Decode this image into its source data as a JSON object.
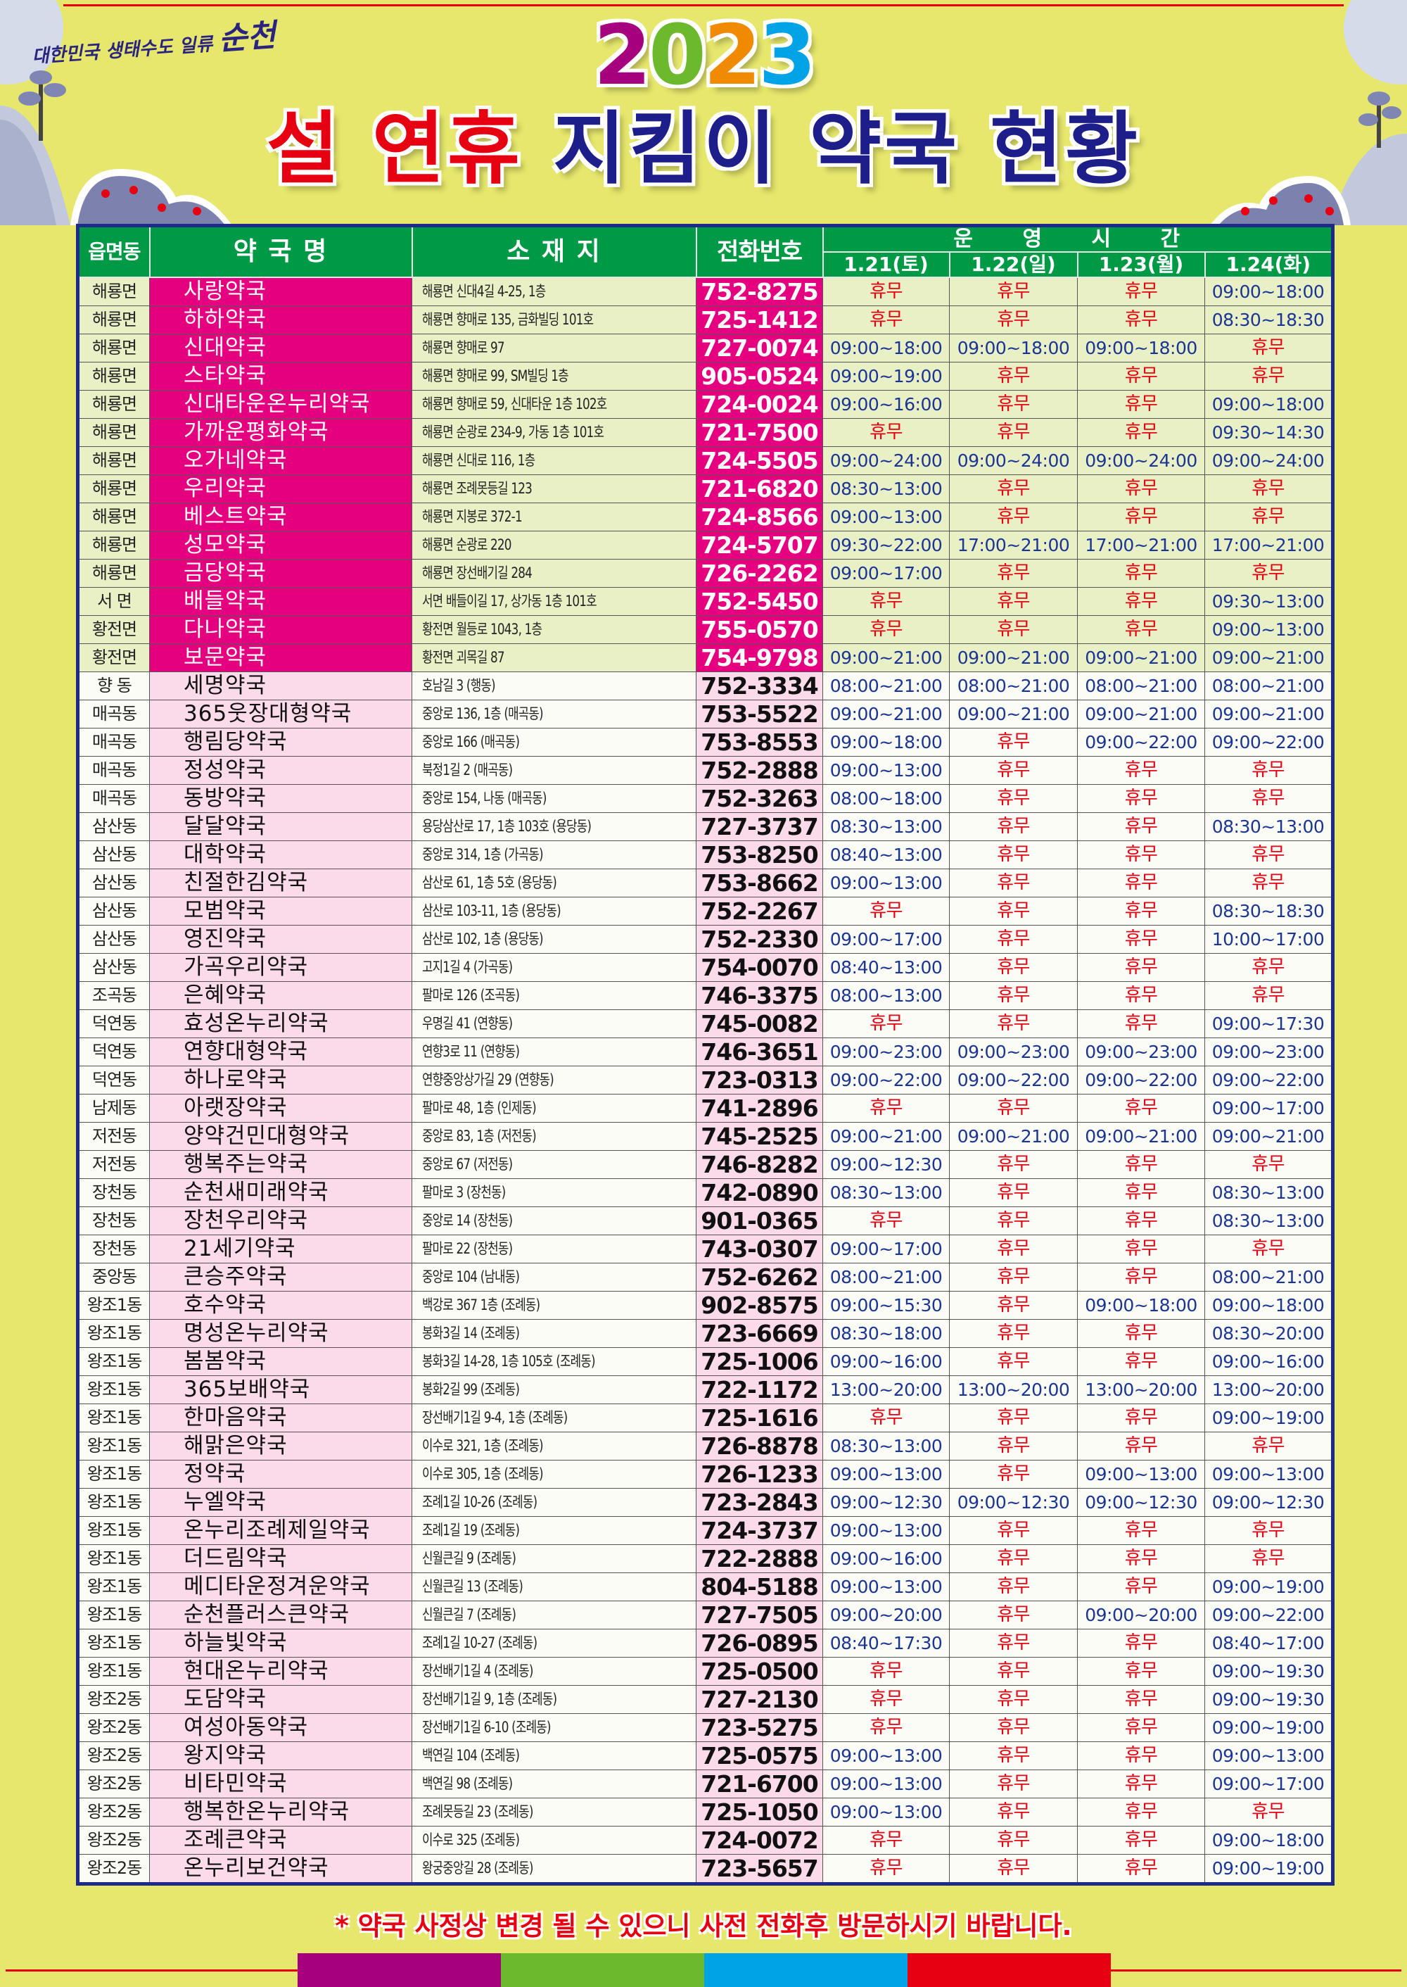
{
  "logo": {
    "text_small": "대한민국 생태수도 일류",
    "text_big": "순천"
  },
  "header": {
    "year_digits": [
      "2",
      "0",
      "2",
      "3"
    ],
    "year_colors": [
      "#a6007f",
      "#6db92d",
      "#f08a00",
      "#00a3e6"
    ],
    "title_red": "설 연휴",
    "title_navy": "지킴이 약국 현황"
  },
  "colors": {
    "accent_red": "#e60012",
    "navy": "#1e1e8a",
    "green": "#009a47",
    "magenta": "#e4007f",
    "hours_blue": "#1a3593"
  },
  "table": {
    "headers": {
      "district": "읍면동",
      "name": "약 국 명",
      "address": "소 재 지",
      "phone": "전화번호",
      "hours": "운 영 시 간"
    },
    "days": [
      "1.21(토)",
      "1.22(일)",
      "1.23(월)",
      "1.24(화)"
    ],
    "closed_label": "휴무",
    "featured_rows": [
      [
        "해룡면",
        "사랑약국",
        "해룡면 신대4길 4-25, 1층",
        "752-8275",
        "휴무",
        "휴무",
        "휴무",
        "09:00~18:00"
      ],
      [
        "해룡면",
        "하하약국",
        "해룡면 향매로 135, 금화빌딩 101호",
        "725-1412",
        "휴무",
        "휴무",
        "휴무",
        "08:30~18:30"
      ],
      [
        "해룡면",
        "신대약국",
        "해룡면 향매로 97",
        "727-0074",
        "09:00~18:00",
        "09:00~18:00",
        "09:00~18:00",
        "휴무"
      ],
      [
        "해룡면",
        "스타약국",
        "해룡면 향매로 99, SM빌딩 1층",
        "905-0524",
        "09:00~19:00",
        "휴무",
        "휴무",
        "휴무"
      ],
      [
        "해룡면",
        "신대타운온누리약국",
        "해룡면 향매로 59, 신대타운 1층 102호",
        "724-0024",
        "09:00~16:00",
        "휴무",
        "휴무",
        "09:00~18:00"
      ],
      [
        "해룡면",
        "가까운평화약국",
        "해룡면 순광로 234-9, 가동 1층 101호",
        "721-7500",
        "휴무",
        "휴무",
        "휴무",
        "09:30~14:30"
      ],
      [
        "해룡면",
        "오가네약국",
        "해룡면 신대로 116, 1층",
        "724-5505",
        "09:00~24:00",
        "09:00~24:00",
        "09:00~24:00",
        "09:00~24:00"
      ],
      [
        "해룡면",
        "우리약국",
        "해룡면 조례못등길 123",
        "721-6820",
        "08:30~13:00",
        "휴무",
        "휴무",
        "휴무"
      ],
      [
        "해룡면",
        "베스트약국",
        "해룡면 지봉로 372-1",
        "724-8566",
        "09:00~13:00",
        "휴무",
        "휴무",
        "휴무"
      ],
      [
        "해룡면",
        "성모약국",
        "해룡면 순광로 220",
        "724-5707",
        "09:30~22:00",
        "17:00~21:00",
        "17:00~21:00",
        "17:00~21:00"
      ],
      [
        "해룡면",
        "금당약국",
        "해룡면 장선배기길 284",
        "726-2262",
        "09:00~17:00",
        "휴무",
        "휴무",
        "휴무"
      ],
      [
        "서  면",
        "배들약국",
        "서면 배들이길 17, 상가동 1층 101호",
        "752-5450",
        "휴무",
        "휴무",
        "휴무",
        "09:30~13:00"
      ],
      [
        "황전면",
        "다나약국",
        "황전면 월등로 1043, 1층",
        "755-0570",
        "휴무",
        "휴무",
        "휴무",
        "09:00~13:00"
      ],
      [
        "황전면",
        "보문약국",
        "황전면 괴목길 87",
        "754-9798",
        "09:00~21:00",
        "09:00~21:00",
        "09:00~21:00",
        "09:00~21:00"
      ]
    ],
    "rows": [
      [
        "향  동",
        "세명약국",
        "호남길 3 (행동)",
        "752-3334",
        "08:00~21:00",
        "08:00~21:00",
        "08:00~21:00",
        "08:00~21:00"
      ],
      [
        "매곡동",
        "365웃장대형약국",
        "중앙로 136, 1층 (매곡동)",
        "753-5522",
        "09:00~21:00",
        "09:00~21:00",
        "09:00~21:00",
        "09:00~21:00"
      ],
      [
        "매곡동",
        "행림당약국",
        "중앙로 166 (매곡동)",
        "753-8553",
        "09:00~18:00",
        "휴무",
        "09:00~22:00",
        "09:00~22:00"
      ],
      [
        "매곡동",
        "정성약국",
        "북정1길 2 (매곡동)",
        "752-2888",
        "09:00~13:00",
        "휴무",
        "휴무",
        "휴무"
      ],
      [
        "매곡동",
        "동방약국",
        "중앙로 154, 나동 (매곡동)",
        "752-3263",
        "08:00~18:00",
        "휴무",
        "휴무",
        "휴무"
      ],
      [
        "삼산동",
        "달달약국",
        "용당삼산로 17, 1층 103호 (용당동)",
        "727-3737",
        "08:30~13:00",
        "휴무",
        "휴무",
        "08:30~13:00"
      ],
      [
        "삼산동",
        "대학약국",
        "중앙로 314, 1층 (가곡동)",
        "753-8250",
        "08:40~13:00",
        "휴무",
        "휴무",
        "휴무"
      ],
      [
        "삼산동",
        "친절한김약국",
        "삼산로 61, 1층 5호 (용당동)",
        "753-8662",
        "09:00~13:00",
        "휴무",
        "휴무",
        "휴무"
      ],
      [
        "삼산동",
        "모범약국",
        "삼산로 103-11, 1층 (용당동)",
        "752-2267",
        "휴무",
        "휴무",
        "휴무",
        "08:30~18:30"
      ],
      [
        "삼산동",
        "영진약국",
        "삼산로 102, 1층 (용당동)",
        "752-2330",
        "09:00~17:00",
        "휴무",
        "휴무",
        "10:00~17:00"
      ],
      [
        "삼산동",
        "가곡우리약국",
        "고지1길 4 (가곡동)",
        "754-0070",
        "08:40~13:00",
        "휴무",
        "휴무",
        "휴무"
      ],
      [
        "조곡동",
        "은혜약국",
        "팔마로 126 (조곡동)",
        "746-3375",
        "08:00~13:00",
        "휴무",
        "휴무",
        "휴무"
      ],
      [
        "덕연동",
        "효성온누리약국",
        "우명길 41 (연향동)",
        "745-0082",
        "휴무",
        "휴무",
        "휴무",
        "09:00~17:30"
      ],
      [
        "덕연동",
        "연향대형약국",
        "연향3로 11 (연향동)",
        "746-3651",
        "09:00~23:00",
        "09:00~23:00",
        "09:00~23:00",
        "09:00~23:00"
      ],
      [
        "덕연동",
        "하나로약국",
        "연향중앙상가길 29 (연향동)",
        "723-0313",
        "09:00~22:00",
        "09:00~22:00",
        "09:00~22:00",
        "09:00~22:00"
      ],
      [
        "남제동",
        "아랫장약국",
        "팔마로 48, 1층 (인제동)",
        "741-2896",
        "휴무",
        "휴무",
        "휴무",
        "09:00~17:00"
      ],
      [
        "저전동",
        "양약건민대형약국",
        "중앙로 83, 1층 (저전동)",
        "745-2525",
        "09:00~21:00",
        "09:00~21:00",
        "09:00~21:00",
        "09:00~21:00"
      ],
      [
        "저전동",
        "행복주는약국",
        "중앙로 67 (저전동)",
        "746-8282",
        "09:00~12:30",
        "휴무",
        "휴무",
        "휴무"
      ],
      [
        "장천동",
        "순천새미래약국",
        "팔마로 3 (장천동)",
        "742-0890",
        "08:30~13:00",
        "휴무",
        "휴무",
        "08:30~13:00"
      ],
      [
        "장천동",
        "장천우리약국",
        "중앙로 14 (장천동)",
        "901-0365",
        "휴무",
        "휴무",
        "휴무",
        "08:30~13:00"
      ],
      [
        "장천동",
        "21세기약국",
        "팔마로 22 (장천동)",
        "743-0307",
        "09:00~17:00",
        "휴무",
        "휴무",
        "휴무"
      ],
      [
        "중앙동",
        "큰승주약국",
        "중앙로 104 (남내동)",
        "752-6262",
        "08:00~21:00",
        "휴무",
        "휴무",
        "08:00~21:00"
      ],
      [
        "왕조1동",
        "호수약국",
        "백강로 367 1층 (조례동)",
        "902-8575",
        "09:00~15:30",
        "휴무",
        "09:00~18:00",
        "09:00~18:00"
      ],
      [
        "왕조1동",
        "명성온누리약국",
        "봉화3길 14 (조례동)",
        "723-6669",
        "08:30~18:00",
        "휴무",
        "휴무",
        "08:30~20:00"
      ],
      [
        "왕조1동",
        "봄봄약국",
        "봉화3길 14-28, 1층 105호 (조례동)",
        "725-1006",
        "09:00~16:00",
        "휴무",
        "휴무",
        "09:00~16:00"
      ],
      [
        "왕조1동",
        "365보배약국",
        "봉화2길 99 (조례동)",
        "722-1172",
        "13:00~20:00",
        "13:00~20:00",
        "13:00~20:00",
        "13:00~20:00"
      ],
      [
        "왕조1동",
        "한마음약국",
        "장선배기1길 9-4, 1층 (조례동)",
        "725-1616",
        "휴무",
        "휴무",
        "휴무",
        "09:00~19:00"
      ],
      [
        "왕조1동",
        "해맑은약국",
        "이수로 321, 1층 (조례동)",
        "726-8878",
        "08:30~13:00",
        "휴무",
        "휴무",
        "휴무"
      ],
      [
        "왕조1동",
        "정약국",
        "이수로 305, 1층 (조례동)",
        "726-1233",
        "09:00~13:00",
        "휴무",
        "09:00~13:00",
        "09:00~13:00"
      ],
      [
        "왕조1동",
        "누엘약국",
        "조례1길 10-26 (조례동)",
        "723-2843",
        "09:00~12:30",
        "09:00~12:30",
        "09:00~12:30",
        "09:00~12:30"
      ],
      [
        "왕조1동",
        "온누리조례제일약국",
        "조례1길 19 (조례동)",
        "724-3737",
        "09:00~13:00",
        "휴무",
        "휴무",
        "휴무"
      ],
      [
        "왕조1동",
        "더드림약국",
        "신월큰길 9 (조례동)",
        "722-2888",
        "09:00~16:00",
        "휴무",
        "휴무",
        "휴무"
      ],
      [
        "왕조1동",
        "메디타운정겨운약국",
        "신월큰길 13 (조례동)",
        "804-5188",
        "09:00~13:00",
        "휴무",
        "휴무",
        "09:00~19:00"
      ],
      [
        "왕조1동",
        "순천플러스큰약국",
        "신월큰길 7 (조례동)",
        "727-7505",
        "09:00~20:00",
        "휴무",
        "09:00~20:00",
        "09:00~22:00"
      ],
      [
        "왕조1동",
        "하늘빛약국",
        "조례1길 10-27 (조례동)",
        "726-0895",
        "08:40~17:30",
        "휴무",
        "휴무",
        "08:40~17:00"
      ],
      [
        "왕조1동",
        "현대온누리약국",
        "장선배기1길 4 (조례동)",
        "725-0500",
        "휴무",
        "휴무",
        "휴무",
        "09:00~19:30"
      ],
      [
        "왕조2동",
        "도담약국",
        "장선배기1길 9, 1층 (조례동)",
        "727-2130",
        "휴무",
        "휴무",
        "휴무",
        "09:00~19:30"
      ],
      [
        "왕조2동",
        "여성아동약국",
        "장선배기1길 6-10 (조례동)",
        "723-5275",
        "휴무",
        "휴무",
        "휴무",
        "09:00~19:00"
      ],
      [
        "왕조2동",
        "왕지약국",
        "백연길 104 (조례동)",
        "725-0575",
        "09:00~13:00",
        "휴무",
        "휴무",
        "09:00~13:00"
      ],
      [
        "왕조2동",
        "비타민약국",
        "백연길 98 (조례동)",
        "721-6700",
        "09:00~13:00",
        "휴무",
        "휴무",
        "09:00~17:00"
      ],
      [
        "왕조2동",
        "행복한온누리약국",
        "조례못등길 23 (조례동)",
        "725-1050",
        "09:00~13:00",
        "휴무",
        "휴무",
        "휴무"
      ],
      [
        "왕조2동",
        "조례큰약국",
        "이수로 325 (조례동)",
        "724-0072",
        "휴무",
        "휴무",
        "휴무",
        "09:00~18:00"
      ],
      [
        "왕조2동",
        "온누리보건약국",
        "왕궁중앙길 28 (조례동)",
        "723-5657",
        "휴무",
        "휴무",
        "휴무",
        "09:00~19:00"
      ]
    ]
  },
  "footer": {
    "note": "* 약국 사정상 변경 될 수 있으니 사전 전화후 방문하시기 바랍니다.",
    "bar_colors": [
      "#a6007f",
      "#6db92d",
      "#00a3e6",
      "#e60012"
    ]
  }
}
